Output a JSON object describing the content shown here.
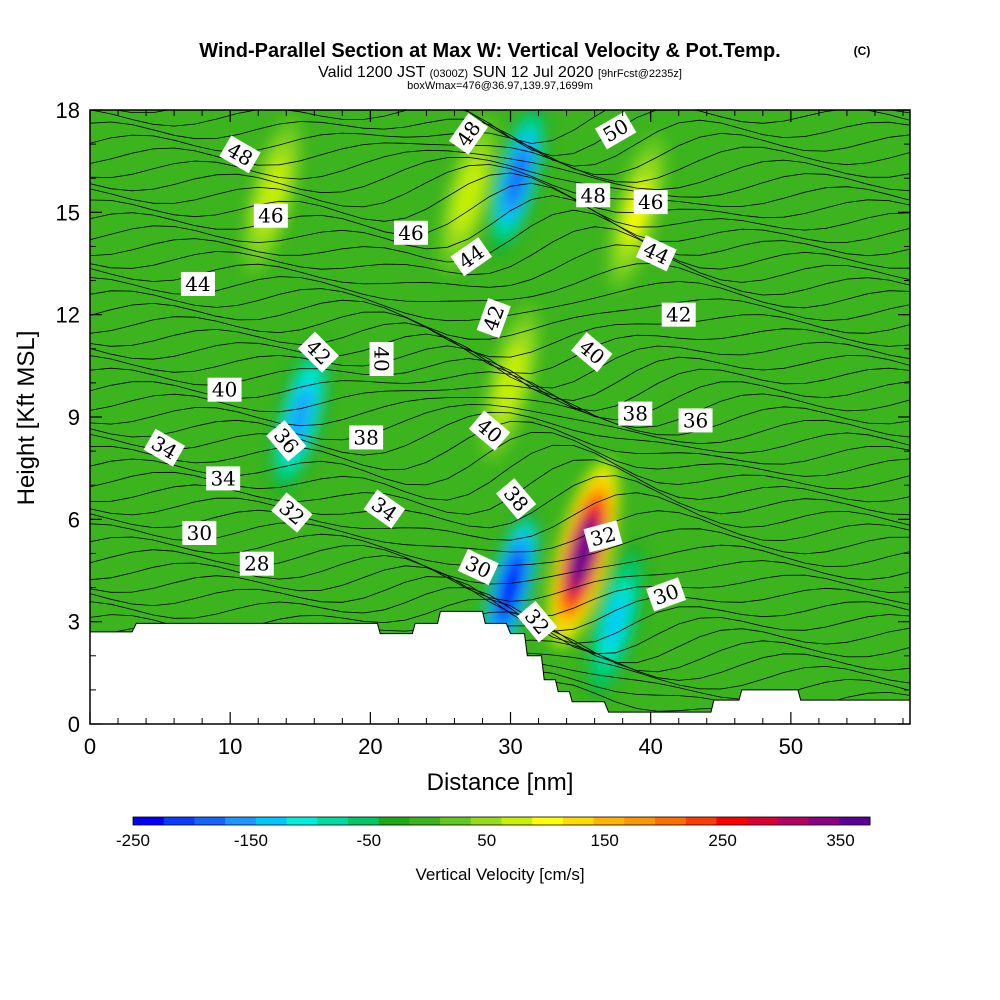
{
  "chart_data": {
    "type": "heatmap",
    "title": "Wind-Parallel Section at Max W: Vertical Velocity & Pot.Temp.",
    "title_mark": "(C)",
    "subtitle": {
      "valid": "Valid 1200 JST",
      "utc": "(0300Z)",
      "date": "SUN 12 Jul 2020",
      "fcst": "[9hrFcst@2235z]"
    },
    "box_info": "boxWmax=476@36.97,139.97,1699m",
    "xlabel": "Distance [nm]",
    "ylabel": "Height [Kft MSL]",
    "xlim": [
      0,
      58.5
    ],
    "ylim": [
      0,
      18
    ],
    "x_ticks": [
      0,
      10,
      20,
      30,
      40,
      50
    ],
    "y_ticks": [
      0,
      3,
      6,
      9,
      12,
      15,
      18
    ],
    "colorbar": {
      "label": "Vertical Velocity [cm/s]",
      "range": [
        -250,
        375
      ],
      "tick_labels": [
        "-250",
        "-150",
        "-50",
        "50",
        "150",
        "250",
        "350"
      ],
      "tick_values": [
        -250,
        -150,
        -50,
        50,
        150,
        250,
        350
      ],
      "colors": [
        "#0000ff",
        "#0a3cff",
        "#1464ff",
        "#1e96ff",
        "#00c8ff",
        "#00f0dc",
        "#00dca0",
        "#00c864",
        "#1eaa14",
        "#3cb41e",
        "#64c81e",
        "#96dc1e",
        "#c8f000",
        "#ffff00",
        "#ffdc00",
        "#ffb400",
        "#ff9600",
        "#ff6e00",
        "#ff3c00",
        "#ff0000",
        "#dc0032",
        "#b40064",
        "#8c0082",
        "#5a0096"
      ]
    },
    "velocity_features": [
      {
        "kind": "updraft",
        "x": 35.2,
        "y": 5.0,
        "peak_cm_s": 375
      },
      {
        "kind": "updraft",
        "x": 30.0,
        "y": 10.0,
        "peak_cm_s": 80
      },
      {
        "kind": "updraft",
        "x": 39.0,
        "y": 15.0,
        "peak_cm_s": 90
      },
      {
        "kind": "updraft",
        "x": 27.0,
        "y": 15.5,
        "peak_cm_s": 80
      },
      {
        "kind": "updraft",
        "x": 13.0,
        "y": 15.5,
        "peak_cm_s": 80
      },
      {
        "kind": "downdraft",
        "x": 30.0,
        "y": 4.0,
        "peak_cm_s": -250
      },
      {
        "kind": "downdraft",
        "x": 30.5,
        "y": 16.0,
        "peak_cm_s": -180
      },
      {
        "kind": "downdraft",
        "x": 15.0,
        "y": 9.0,
        "peak_cm_s": -150
      },
      {
        "kind": "downdraft",
        "x": 37.5,
        "y": 3.0,
        "peak_cm_s": -130
      }
    ],
    "terrain_top_kft": [
      [
        0,
        2.7
      ],
      [
        3,
        2.7
      ],
      [
        3.3,
        2.95
      ],
      [
        20.5,
        2.95
      ],
      [
        20.7,
        2.65
      ],
      [
        23,
        2.65
      ],
      [
        23.2,
        2.95
      ],
      [
        24.8,
        2.95
      ],
      [
        25,
        3.3
      ],
      [
        28,
        3.3
      ],
      [
        28.2,
        2.95
      ],
      [
        29.7,
        2.95
      ],
      [
        30,
        2.65
      ],
      [
        31,
        2.65
      ],
      [
        31.2,
        2.0
      ],
      [
        32.2,
        2.0
      ],
      [
        32.4,
        1.3
      ],
      [
        33.2,
        1.3
      ],
      [
        33.4,
        0.95
      ],
      [
        34.2,
        0.95
      ],
      [
        34.4,
        0.65
      ],
      [
        36.7,
        0.65
      ],
      [
        37,
        0.35
      ],
      [
        44.3,
        0.35
      ],
      [
        44.5,
        0.7
      ],
      [
        46.3,
        0.7
      ],
      [
        46.5,
        1.0
      ],
      [
        50.5,
        1.0
      ],
      [
        50.7,
        0.7
      ],
      [
        58.5,
        0.7
      ]
    ],
    "theta_labels": [
      {
        "text": "48",
        "x": 10.7,
        "y": 16.7,
        "rot": 30
      },
      {
        "text": "46",
        "x": 12.9,
        "y": 14.9,
        "rot": 0
      },
      {
        "text": "44",
        "x": 7.7,
        "y": 12.9,
        "rot": 0
      },
      {
        "text": "42",
        "x": 16.3,
        "y": 10.9,
        "rot": 45
      },
      {
        "text": "40",
        "x": 9.6,
        "y": 9.8,
        "rot": 0
      },
      {
        "text": "40",
        "x": 20.8,
        "y": 10.7,
        "rot": 90
      },
      {
        "text": "38",
        "x": 19.7,
        "y": 8.4,
        "rot": 0
      },
      {
        "text": "36",
        "x": 14.0,
        "y": 8.3,
        "rot": 50
      },
      {
        "text": "34",
        "x": 5.3,
        "y": 8.1,
        "rot": 30
      },
      {
        "text": "34",
        "x": 9.5,
        "y": 7.2,
        "rot": 0
      },
      {
        "text": "34",
        "x": 21.0,
        "y": 6.3,
        "rot": 35
      },
      {
        "text": "32",
        "x": 14.4,
        "y": 6.2,
        "rot": 40
      },
      {
        "text": "30",
        "x": 7.8,
        "y": 5.6,
        "rot": 0
      },
      {
        "text": "28",
        "x": 11.9,
        "y": 4.7,
        "rot": 0
      },
      {
        "text": "48",
        "x": 27.0,
        "y": 17.3,
        "rot": -55
      },
      {
        "text": "46",
        "x": 22.9,
        "y": 14.4,
        "rot": 0
      },
      {
        "text": "44",
        "x": 27.2,
        "y": 13.7,
        "rot": -35
      },
      {
        "text": "42",
        "x": 28.8,
        "y": 11.9,
        "rot": -70
      },
      {
        "text": "40",
        "x": 28.5,
        "y": 8.6,
        "rot": 40
      },
      {
        "text": "38",
        "x": 30.4,
        "y": 6.6,
        "rot": 50
      },
      {
        "text": "30",
        "x": 27.7,
        "y": 4.6,
        "rot": 25
      },
      {
        "text": "32",
        "x": 31.9,
        "y": 3.0,
        "rot": 50
      },
      {
        "text": "50",
        "x": 37.5,
        "y": 17.4,
        "rot": -30
      },
      {
        "text": "48",
        "x": 35.9,
        "y": 15.5,
        "rot": 0
      },
      {
        "text": "46",
        "x": 40.0,
        "y": 15.3,
        "rot": 0
      },
      {
        "text": "44",
        "x": 40.4,
        "y": 13.8,
        "rot": 25
      },
      {
        "text": "42",
        "x": 42.0,
        "y": 12.0,
        "rot": 0
      },
      {
        "text": "40",
        "x": 35.8,
        "y": 10.9,
        "rot": 40
      },
      {
        "text": "38",
        "x": 38.9,
        "y": 9.1,
        "rot": 0
      },
      {
        "text": "36",
        "x": 43.2,
        "y": 8.9,
        "rot": 0
      },
      {
        "text": "32",
        "x": 36.6,
        "y": 5.5,
        "rot": -15
      },
      {
        "text": "30",
        "x": 41.1,
        "y": 3.8,
        "rot": -20
      }
    ]
  }
}
